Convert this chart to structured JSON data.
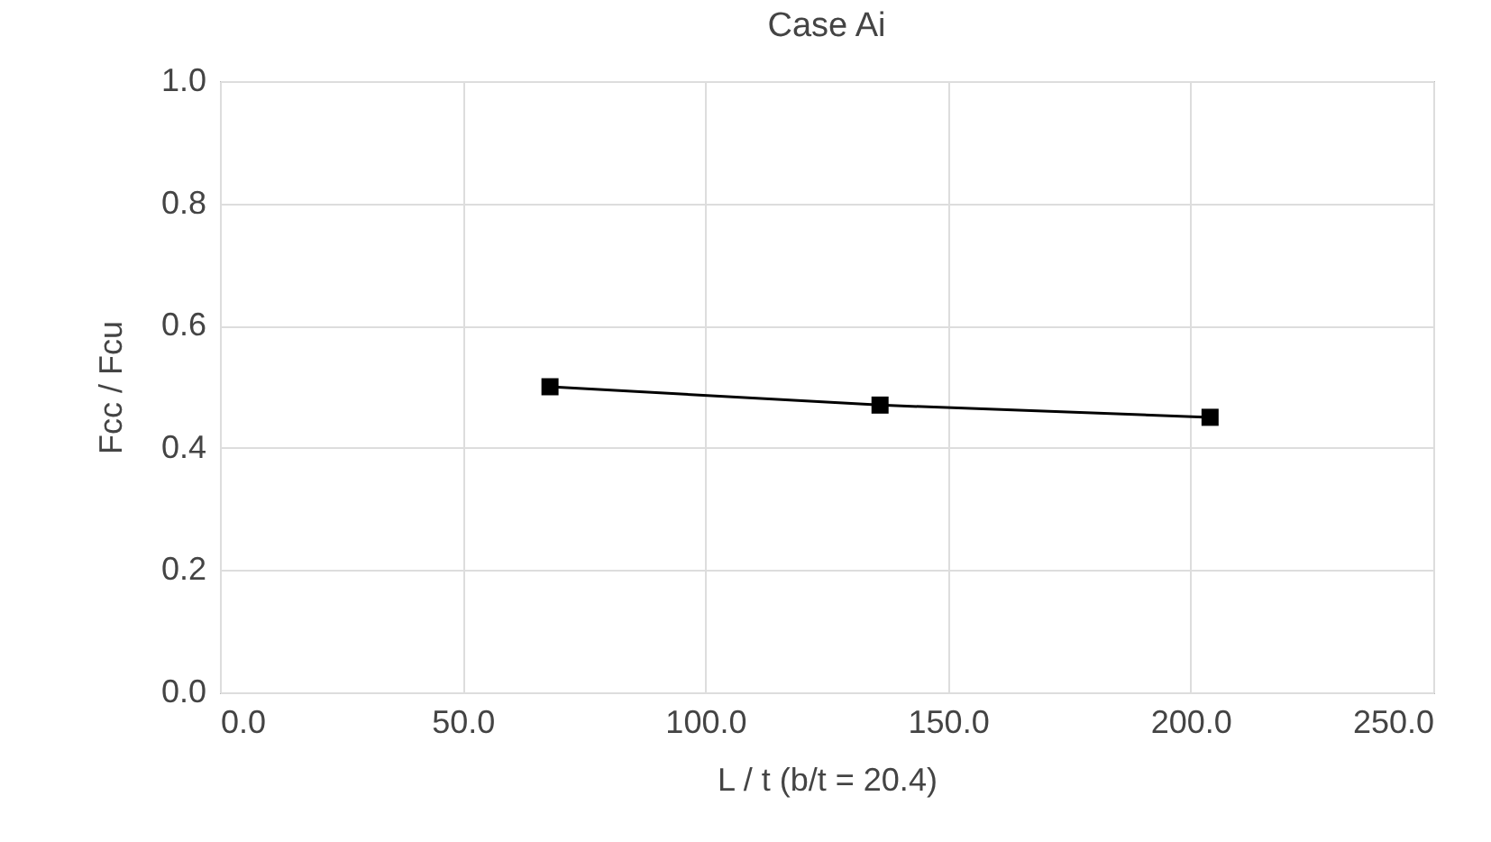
{
  "chart_data": {
    "type": "line",
    "title": "Case Ai",
    "xlabel": "L / t (b/t = 20.4)",
    "ylabel": "Fcc / Fcu",
    "x": [
      68,
      136,
      204
    ],
    "series": [
      {
        "color": "#000000",
        "values": [
          0.5,
          0.47,
          0.45
        ]
      }
    ],
    "xlim": [
      0,
      250
    ],
    "xticks": [
      {
        "value": 0,
        "label": "0.0"
      },
      {
        "value": 50,
        "label": "50.0"
      },
      {
        "value": 100,
        "label": "100.0"
      },
      {
        "value": 150,
        "label": "150.0"
      },
      {
        "value": 200,
        "label": "200.0"
      },
      {
        "value": 250,
        "label": "250.0"
      }
    ],
    "ylim": [
      0,
      1
    ],
    "yticks": [
      {
        "value": 0,
        "label": "0.0"
      },
      {
        "value": 0.2,
        "label": "0.2"
      },
      {
        "value": 0.4,
        "label": "0.4"
      },
      {
        "value": 0.6,
        "label": "0.6"
      },
      {
        "value": 0.8,
        "label": "0.8"
      },
      {
        "value": 1,
        "label": "1.0"
      }
    ],
    "grid": true,
    "marker": "square",
    "line_style": "solid"
  }
}
